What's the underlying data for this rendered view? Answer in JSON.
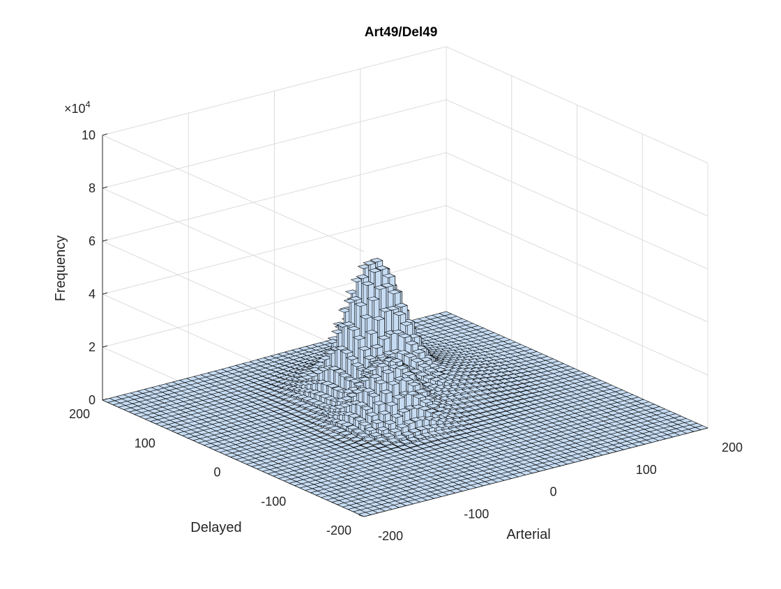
{
  "chart_data": {
    "type": "bar3d-histogram",
    "title": "Art49/Del49",
    "xlabel": "Arterial",
    "ylabel": "Delayed",
    "zlabel": "Frequency",
    "z_exponent_label": "×10",
    "z_exponent_power": "4",
    "xlim": [
      -200,
      200
    ],
    "ylim": [
      -200,
      200
    ],
    "zlim": [
      0,
      100000
    ],
    "x_ticks": [
      "-200",
      "-100",
      "0",
      "100",
      "200"
    ],
    "x_tick_values": [
      -200,
      -100,
      0,
      100,
      200
    ],
    "y_ticks": [
      "-200",
      "-100",
      "0",
      "100",
      "200"
    ],
    "y_tick_values": [
      -200,
      -100,
      0,
      100,
      200
    ],
    "z_ticks": [
      "0",
      "2",
      "4",
      "6",
      "8",
      "10"
    ],
    "z_tick_values": [
      0,
      20000,
      40000,
      60000,
      80000,
      100000
    ],
    "bins_per_axis": 49,
    "grid": true,
    "peaks": [
      {
        "x": 12,
        "y": 65,
        "height": 44000,
        "spread": 26
      },
      {
        "x": -25,
        "y": -8,
        "height": 22000,
        "spread": 24
      },
      {
        "x": 45,
        "y": 70,
        "height": 7000,
        "spread": 55
      }
    ],
    "colors": {
      "bar_fill": "#c6dcf3",
      "bar_edge": "#000000"
    }
  }
}
